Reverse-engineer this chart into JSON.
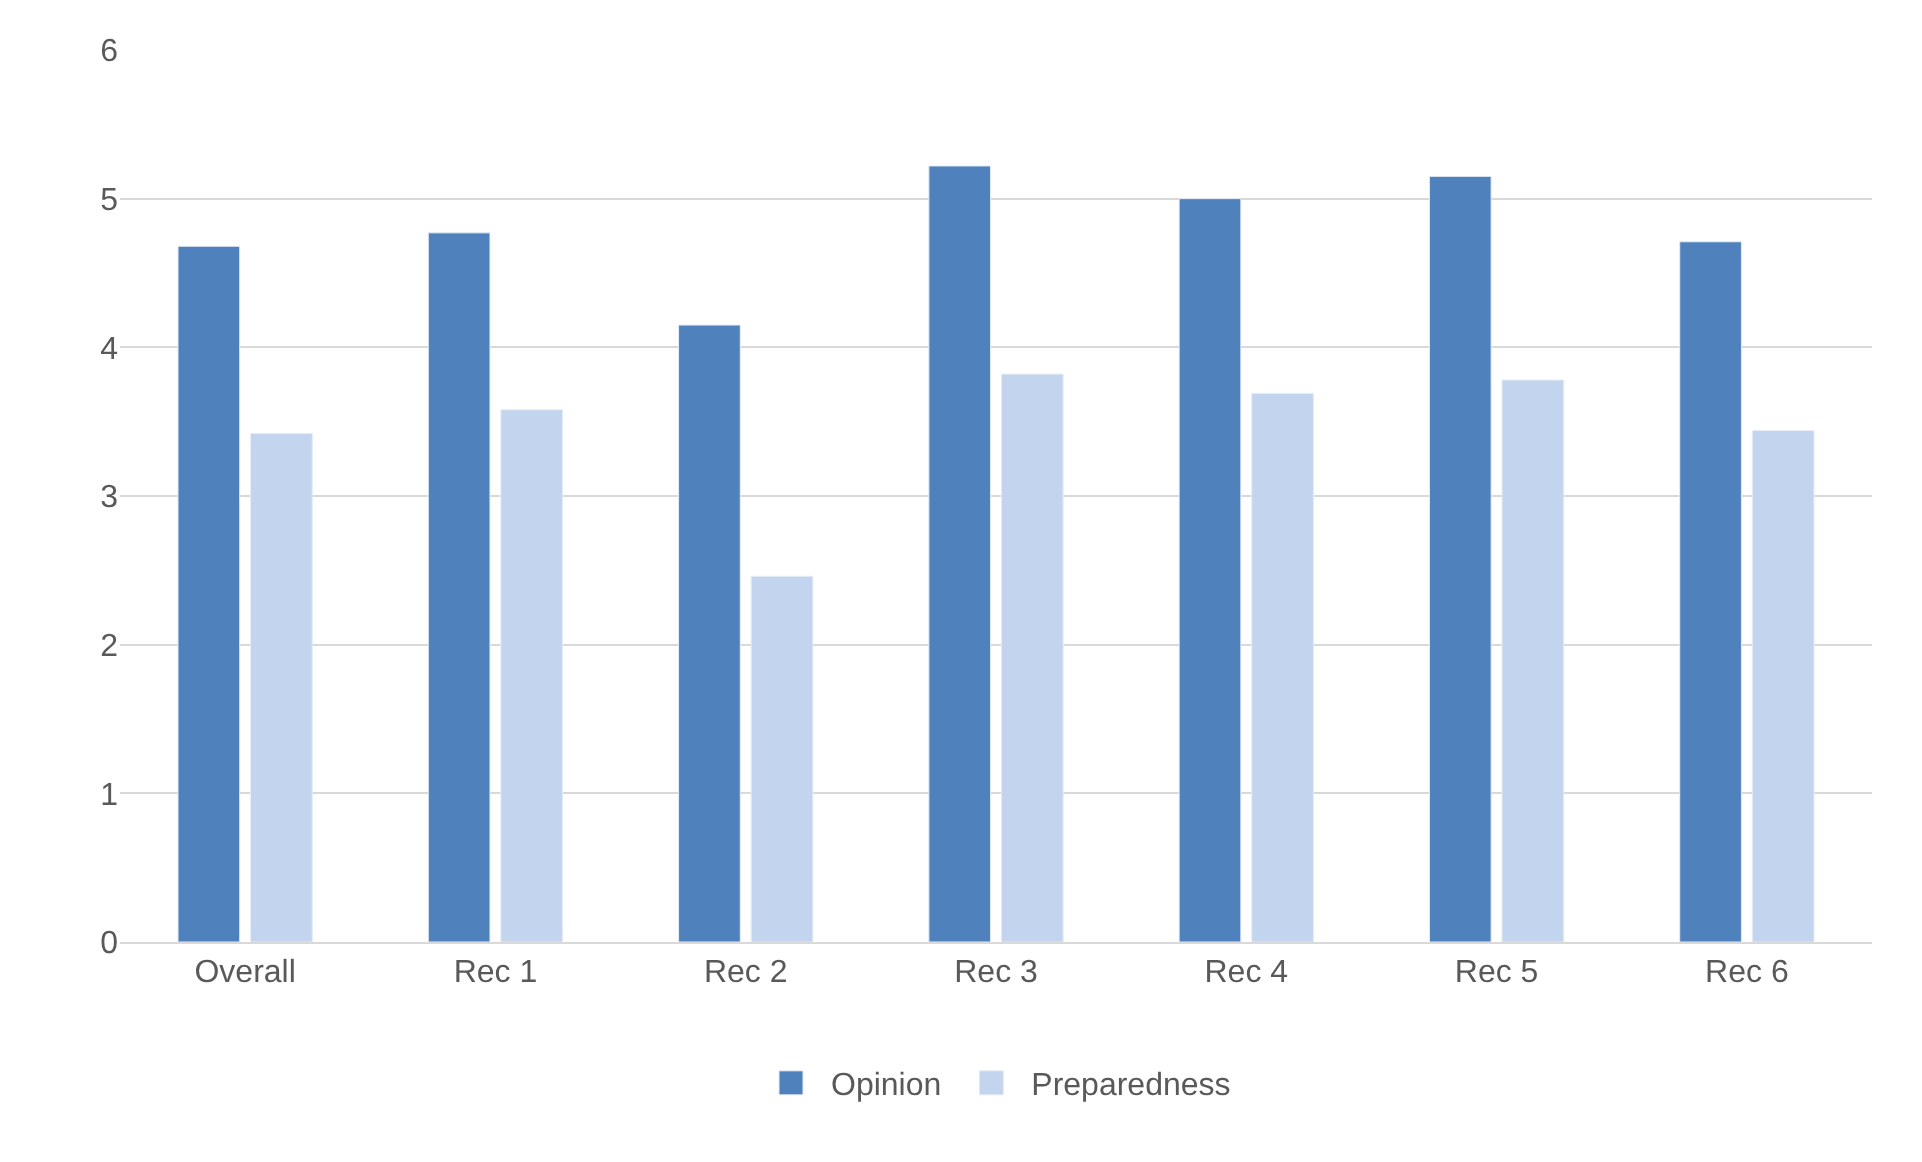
{
  "chart_data": {
    "type": "bar",
    "categories": [
      "Overall",
      "Rec 1",
      "Rec 2",
      "Rec 3",
      "Rec 4",
      "Rec 5",
      "Rec 6"
    ],
    "series": [
      {
        "name": "Opinion",
        "color": "#4f81bd",
        "values": [
          4.68,
          4.77,
          4.15,
          5.22,
          5.0,
          5.15,
          4.71
        ]
      },
      {
        "name": "Preparedness",
        "color": "#c3d4ee",
        "values": [
          3.42,
          3.58,
          2.46,
          3.82,
          3.69,
          3.78,
          3.44
        ]
      }
    ],
    "ylim": [
      0,
      6
    ],
    "yticks": [
      0,
      1,
      2,
      3,
      4,
      5,
      6
    ],
    "grid": "y",
    "legend": "bottom"
  }
}
